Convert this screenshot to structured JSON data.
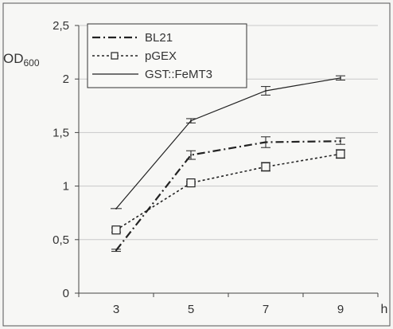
{
  "chart_data": {
    "type": "line",
    "xlabel": "h",
    "ylabel": "OD",
    "ylabel_sub": "600",
    "x": [
      3,
      5,
      7,
      9
    ],
    "xticks": [
      3,
      5,
      7,
      9
    ],
    "xtick_labels": [
      "3",
      "5",
      "7",
      "9"
    ],
    "xlim": [
      2,
      10
    ],
    "ylim": [
      0,
      2.5
    ],
    "yticks": [
      0,
      0.5,
      1,
      1.5,
      2,
      2.5
    ],
    "ytick_labels": [
      "0",
      "0,5",
      "1",
      "1,5",
      "2",
      "2,5"
    ],
    "grid": "horizontal",
    "legend_position": "top-left",
    "series": [
      {
        "name": "BL21",
        "values": [
          0.4,
          1.29,
          1.41,
          1.42
        ],
        "errors": [
          0.01,
          0.04,
          0.05,
          0.03
        ],
        "line_style": "dash-dot",
        "marker": "none"
      },
      {
        "name": "pGEX",
        "values": [
          0.59,
          1.03,
          1.18,
          1.3
        ],
        "errors": [
          0.02,
          0.01,
          0.04,
          0.04
        ],
        "line_style": "dotted",
        "marker": "square-open"
      },
      {
        "name": "GST::FeMT3",
        "values": [
          0.79,
          1.61,
          1.89,
          2.01
        ],
        "errors": [
          0.0,
          0.02,
          0.04,
          0.02
        ],
        "line_style": "solid",
        "marker": "none"
      }
    ]
  }
}
